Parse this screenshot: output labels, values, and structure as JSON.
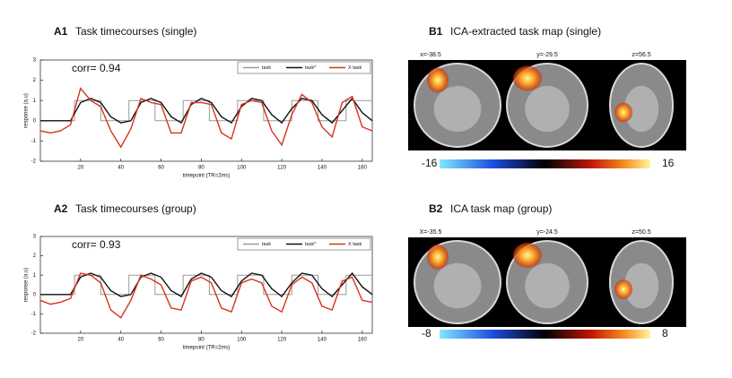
{
  "chart_data": [
    {
      "type": "line",
      "label": "A1",
      "title": "Task timecourses  (single)",
      "annotation": "corr= 0.94",
      "x_label": "timepoint (TR=2ms)",
      "y_label": "response (a.u)",
      "xlim": [
        0,
        165
      ],
      "ylim": [
        -2,
        3
      ],
      "xticks": [
        20,
        40,
        60,
        80,
        100,
        120,
        140,
        160
      ],
      "yticks": [
        -2,
        -1,
        0,
        1,
        2,
        3
      ],
      "x": [
        0,
        5,
        10,
        15,
        20,
        25,
        30,
        35,
        40,
        45,
        50,
        55,
        60,
        65,
        70,
        75,
        80,
        85,
        90,
        95,
        100,
        105,
        110,
        115,
        120,
        125,
        130,
        135,
        140,
        145,
        150,
        155,
        160,
        165
      ],
      "series": [
        {
          "name": "task",
          "color": "#9a9a9a",
          "x": [
            0,
            17,
            17,
            30,
            30,
            44,
            44,
            57,
            57,
            71,
            71,
            84,
            84,
            98,
            98,
            111,
            111,
            125,
            125,
            138,
            138,
            152,
            152,
            165
          ],
          "values": [
            0,
            0,
            1,
            1,
            0,
            0,
            1,
            1,
            0,
            0,
            1,
            1,
            0,
            0,
            1,
            1,
            0,
            0,
            1,
            1,
            0,
            0,
            1,
            1
          ]
        },
        {
          "name": "task*",
          "color": "#111111",
          "values": [
            0,
            0,
            0,
            0,
            0.9,
            1.1,
            0.9,
            0.2,
            -0.1,
            0,
            0.9,
            1.1,
            0.9,
            0.2,
            -0.1,
            0.8,
            1.1,
            0.9,
            0.2,
            -0.1,
            0.7,
            1.1,
            1.0,
            0.3,
            -0.1,
            0.6,
            1.1,
            1.0,
            0.3,
            -0.1,
            0.5,
            1.1,
            0.4,
            0
          ]
        },
        {
          "name": "X task",
          "color": "#d8321f",
          "values": [
            -0.5,
            -0.6,
            -0.5,
            -0.2,
            1.6,
            1.0,
            0.7,
            -0.5,
            -1.3,
            -0.4,
            1.1,
            0.9,
            0.8,
            -0.6,
            -0.6,
            0.9,
            0.9,
            0.8,
            -0.6,
            -0.9,
            0.8,
            1.0,
            0.9,
            -0.5,
            -1.2,
            0.3,
            1.3,
            0.9,
            -0.3,
            -0.8,
            0.9,
            1.2,
            -0.3,
            -0.5
          ]
        }
      ]
    },
    {
      "type": "line",
      "label": "A2",
      "title": "Task timecourses  (group)",
      "annotation": "corr= 0.93",
      "x_label": "timepoint (TR=2ms)",
      "y_label": "response (a.u)",
      "xlim": [
        0,
        165
      ],
      "ylim": [
        -2,
        3
      ],
      "xticks": [
        20,
        40,
        60,
        80,
        100,
        120,
        140,
        160
      ],
      "yticks": [
        -2,
        -1,
        0,
        1,
        2,
        3
      ],
      "x": [
        0,
        5,
        10,
        15,
        20,
        25,
        30,
        35,
        40,
        45,
        50,
        55,
        60,
        65,
        70,
        75,
        80,
        85,
        90,
        95,
        100,
        105,
        110,
        115,
        120,
        125,
        130,
        135,
        140,
        145,
        150,
        155,
        160,
        165
      ],
      "series": [
        {
          "name": "task",
          "color": "#9a9a9a",
          "x": [
            0,
            17,
            17,
            30,
            30,
            44,
            44,
            57,
            57,
            71,
            71,
            84,
            84,
            98,
            98,
            111,
            111,
            125,
            125,
            138,
            138,
            152,
            152,
            165
          ],
          "values": [
            0,
            0,
            1,
            1,
            0,
            0,
            1,
            1,
            0,
            0,
            1,
            1,
            0,
            0,
            1,
            1,
            0,
            0,
            1,
            1,
            0,
            0,
            1,
            1
          ]
        },
        {
          "name": "task*",
          "color": "#111111",
          "values": [
            0,
            0,
            0,
            0,
            0.9,
            1.1,
            0.9,
            0.2,
            -0.1,
            0,
            0.9,
            1.1,
            0.9,
            0.2,
            -0.1,
            0.8,
            1.1,
            0.9,
            0.2,
            -0.1,
            0.7,
            1.1,
            1.0,
            0.3,
            -0.1,
            0.6,
            1.1,
            1.0,
            0.3,
            -0.1,
            0.5,
            1.1,
            0.4,
            0
          ]
        },
        {
          "name": "X task",
          "color": "#d8321f",
          "values": [
            -0.3,
            -0.5,
            -0.4,
            -0.2,
            1.1,
            1.0,
            0.6,
            -0.8,
            -1.2,
            -0.3,
            1.0,
            0.8,
            0.5,
            -0.7,
            -0.8,
            0.7,
            0.9,
            0.6,
            -0.7,
            -0.9,
            0.6,
            0.8,
            0.6,
            -0.6,
            -0.9,
            0.5,
            0.9,
            0.6,
            -0.6,
            -0.8,
            0.7,
            0.9,
            -0.3,
            -0.4
          ]
        }
      ]
    }
  ],
  "maps": [
    {
      "label": "B1",
      "title": "ICA-extracted  task map  (single)",
      "coords": [
        "x=-38.5",
        "y=-29.5",
        "z=56.5"
      ],
      "colorbar_min": -16,
      "colorbar_max": 16
    },
    {
      "label": "B2",
      "title": "ICA task map  (group)",
      "coords": [
        "X=-35.5",
        "y=-24.5",
        "z=50.5"
      ],
      "colorbar_min": -8,
      "colorbar_max": 8
    }
  ]
}
